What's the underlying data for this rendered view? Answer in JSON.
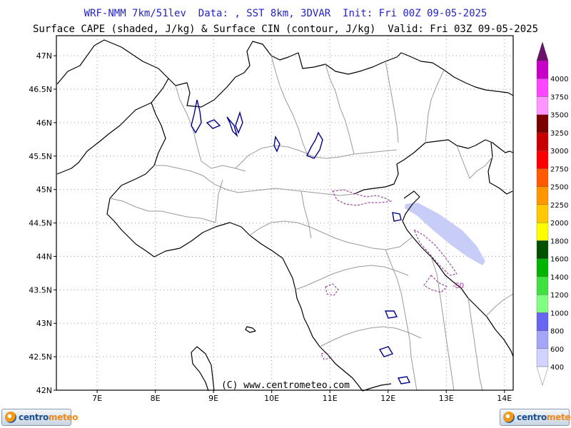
{
  "header": {
    "line1": "WRF-NMM 7km/51lev  Data: , SST 8km, 3DVAR  Init: Fri 00Z 09-05-2025",
    "line2": "Surface CAPE (shaded, J/kg) & Surface CIN (contour, J/kg)  Valid: Fri 03Z 09-05-2025"
  },
  "map": {
    "projection": "lat-lon",
    "lon_range": [
      6.3,
      14.15
    ],
    "lat_range": [
      42.0,
      47.3
    ],
    "lon_ticks": [
      "7E",
      "8E",
      "9E",
      "10E",
      "11E",
      "12E",
      "13E",
      "14E"
    ],
    "lon_tick_values": [
      7,
      8,
      9,
      10,
      11,
      12,
      13,
      14
    ],
    "lat_ticks": [
      "47N",
      "46.5N",
      "46N",
      "45.5N",
      "45N",
      "44.5N",
      "44N",
      "43.5N",
      "43N",
      "42.5N",
      "42N"
    ],
    "lat_tick_values": [
      47,
      46.5,
      46,
      45.5,
      45,
      44.5,
      44,
      43.5,
      43,
      42.5,
      42
    ],
    "grid": "dotted",
    "copyright": "(C) www.centrometeo.com",
    "cin_contour_label": "-50",
    "colors": {
      "coast_border": "#000000",
      "admin_border": "#9a9a9a",
      "cin_contour": "#8b2a8b",
      "lakes": "#00008b",
      "grid": "#9a9a9a",
      "cape_shade": "#c8cdf7"
    }
  },
  "colorbar": {
    "levels": [
      "400",
      "600",
      "800",
      "1000",
      "1200",
      "1400",
      "1600",
      "1800",
      "2000",
      "2250",
      "2500",
      "2750",
      "3000",
      "3250",
      "3500",
      "3750",
      "4000"
    ],
    "colors": [
      "#d2d2ff",
      "#a6a6f8",
      "#6666f0",
      "#80ff80",
      "#40e040",
      "#00b400",
      "#005000",
      "#ffff00",
      "#ffc800",
      "#ff9600",
      "#ff5a00",
      "#ff0000",
      "#c80000",
      "#7a0000",
      "#ff96ff",
      "#ff46ff",
      "#c800c8"
    ],
    "top_color": "#6e0f6e"
  },
  "logos": {
    "left_text_1": "centro",
    "left_text_2": "meteo",
    "right_text_1": "centro",
    "right_text_2": "meteo"
  }
}
